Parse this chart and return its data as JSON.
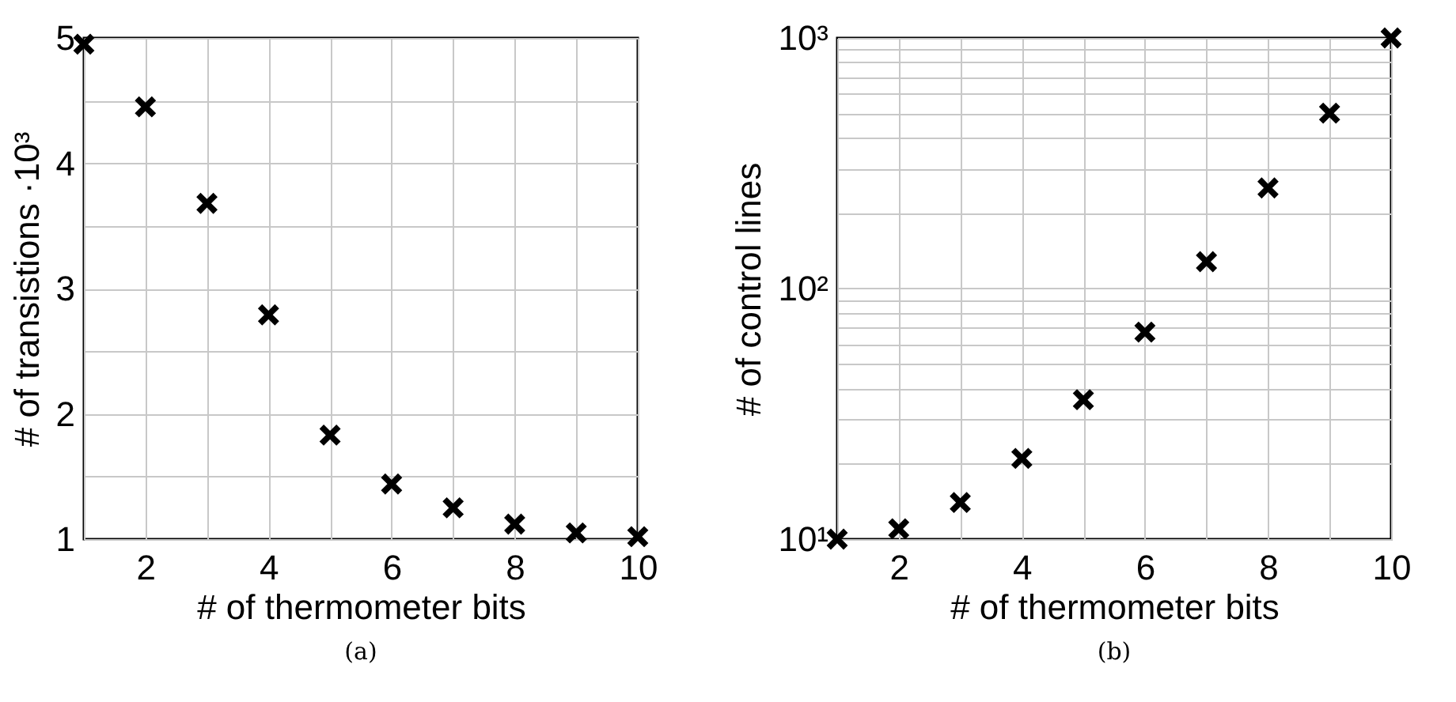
{
  "chart_data": [
    {
      "type": "scatter",
      "xlabel": "# of thermometer bits",
      "ylabel": "# of transistions ·10³",
      "annotations": [
        "(a)"
      ],
      "x": [
        1,
        2,
        3,
        4,
        5,
        6,
        7,
        8,
        9,
        10
      ],
      "values": [
        4.95,
        4.45,
        3.68,
        2.79,
        1.83,
        1.44,
        1.25,
        1.12,
        1.05,
        1.02
      ],
      "color": "#000000",
      "marker": "cross",
      "grid": true,
      "xlim": [
        1,
        10
      ],
      "xticks": [
        {
          "value": 1,
          "label": null
        },
        2,
        {
          "value": 3,
          "label": null
        },
        4,
        {
          "value": 5,
          "label": null
        },
        6,
        {
          "value": 7,
          "label": null
        },
        8,
        {
          "value": 9,
          "label": null
        },
        10
      ],
      "ylim": [
        1,
        5
      ],
      "yticks": [
        1,
        {
          "value": 1.5,
          "label": null
        },
        2,
        {
          "value": 2.5,
          "label": null
        },
        3,
        {
          "value": 3.5,
          "label": null
        },
        4,
        {
          "value": 4.5,
          "label": null
        },
        5
      ]
    },
    {
      "type": "scatter",
      "xlabel": "# of thermometer bits",
      "ylabel": "# of control lines",
      "annotations": [
        "(b)"
      ],
      "x": [
        1,
        2,
        3,
        4,
        5,
        6,
        7,
        8,
        9,
        10
      ],
      "values": [
        10,
        11,
        14,
        21,
        36,
        67,
        128,
        252,
        501,
        1000
      ],
      "color": "#000000",
      "marker": "cross",
      "grid": true,
      "log": "y",
      "xlim": [
        1,
        10
      ],
      "xticks": [
        {
          "value": 1,
          "label": null
        },
        2,
        {
          "value": 3,
          "label": null
        },
        4,
        {
          "value": 5,
          "label": null
        },
        6,
        {
          "value": 7,
          "label": null
        },
        8,
        {
          "value": 9,
          "label": null
        },
        10
      ],
      "ylim": [
        10,
        1000
      ],
      "yticks": [
        {
          "value": 10,
          "label": "10¹"
        },
        {
          "value": 20,
          "label": null
        },
        {
          "value": 30,
          "label": null
        },
        {
          "value": 40,
          "label": null
        },
        {
          "value": 50,
          "label": null
        },
        {
          "value": 60,
          "label": null
        },
        {
          "value": 70,
          "label": null
        },
        {
          "value": 80,
          "label": null
        },
        {
          "value": 90,
          "label": null
        },
        {
          "value": 100,
          "label": "10²"
        },
        {
          "value": 200,
          "label": null
        },
        {
          "value": 300,
          "label": null
        },
        {
          "value": 400,
          "label": null
        },
        {
          "value": 500,
          "label": null
        },
        {
          "value": 600,
          "label": null
        },
        {
          "value": 700,
          "label": null
        },
        {
          "value": 800,
          "label": null
        },
        {
          "value": 900,
          "label": null
        },
        {
          "value": 1000,
          "label": "10³"
        }
      ]
    }
  ]
}
